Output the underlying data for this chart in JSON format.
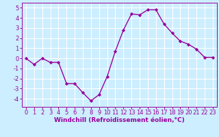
{
  "x": [
    0,
    1,
    2,
    3,
    4,
    5,
    6,
    7,
    8,
    9,
    10,
    11,
    12,
    13,
    14,
    15,
    16,
    17,
    18,
    19,
    20,
    21,
    22,
    23
  ],
  "y": [
    0.0,
    -0.6,
    0.0,
    -0.4,
    -0.4,
    -2.5,
    -2.5,
    -3.4,
    -4.2,
    -3.6,
    -1.8,
    0.7,
    2.8,
    4.4,
    4.3,
    4.8,
    4.8,
    3.4,
    2.5,
    1.7,
    1.4,
    0.9,
    0.1,
    0.1
  ],
  "line_color": "#990099",
  "marker": "D",
  "marker_size": 2.2,
  "linewidth": 1.0,
  "bg_color": "#cceeff",
  "grid_color": "#ffffff",
  "xlabel": "Windchill (Refroidissement éolien,°C)",
  "tick_color": "#990099",
  "xlim": [
    -0.5,
    23.5
  ],
  "ylim": [
    -4.8,
    5.5
  ],
  "yticks": [
    -4,
    -3,
    -2,
    -1,
    0,
    1,
    2,
    3,
    4,
    5
  ],
  "xticks": [
    0,
    1,
    2,
    3,
    4,
    5,
    6,
    7,
    8,
    9,
    10,
    11,
    12,
    13,
    14,
    15,
    16,
    17,
    18,
    19,
    20,
    21,
    22,
    23
  ],
  "font_size_label": 6.5,
  "font_size_tick": 6.0
}
